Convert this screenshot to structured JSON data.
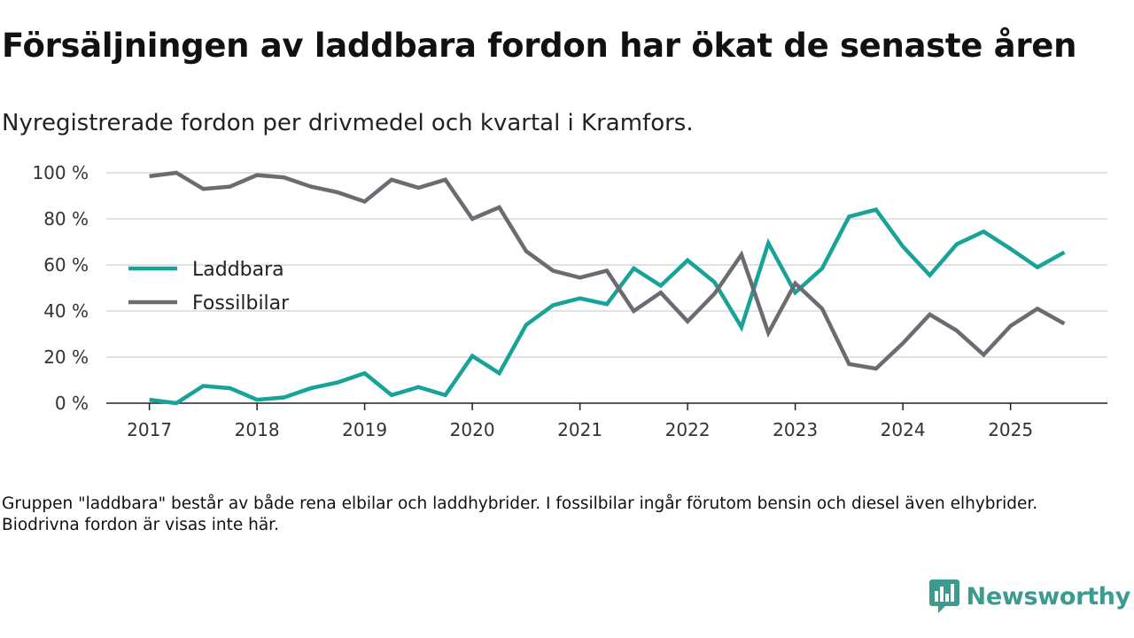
{
  "title": "Försäljningen av laddbara fordon har ökat de senaste åren",
  "subtitle": "Nyregistrerade fordon per drivmedel och kvartal i Kramfors.",
  "note": "Gruppen \"laddbara\" består av både rena elbilar och laddhybrider. I fossilbilar ingår förutom bensin och diesel även elhybrider. Biodrivna fordon är visas inte här.",
  "brand": {
    "name": "Newsworthy",
    "color": "#3d9a8f"
  },
  "chart_data": {
    "type": "line",
    "title": "Försäljningen av laddbara fordon har ökat de senaste åren",
    "xlabel": "",
    "ylabel": "",
    "ylim": [
      0,
      100
    ],
    "xlim": [
      2016.6,
      2025.9
    ],
    "y_ticks": [
      0,
      20,
      40,
      60,
      80,
      100
    ],
    "y_tick_labels": [
      "0 %",
      "20 %",
      "40 %",
      "60 %",
      "80 %",
      "100 %"
    ],
    "x_ticks": [
      2017,
      2018,
      2019,
      2020,
      2021,
      2022,
      2023,
      2024,
      2025
    ],
    "x_tick_labels": [
      "2017",
      "2018",
      "2019",
      "2020",
      "2021",
      "2022",
      "2023",
      "2024",
      "2025"
    ],
    "grid": true,
    "legend_position": "left",
    "x": [
      2017.0,
      2017.25,
      2017.5,
      2017.75,
      2018.0,
      2018.25,
      2018.5,
      2018.75,
      2019.0,
      2019.25,
      2019.5,
      2019.75,
      2020.0,
      2020.25,
      2020.5,
      2020.75,
      2021.0,
      2021.25,
      2021.5,
      2021.75,
      2022.0,
      2022.25,
      2022.5,
      2022.75,
      2023.0,
      2023.25,
      2023.5,
      2023.75,
      2024.0,
      2024.25,
      2024.5,
      2024.75,
      2025.0,
      2025.25,
      2025.5
    ],
    "series": [
      {
        "name": "Laddbara",
        "color": "#17a398",
        "values": [
          1.5,
          0,
          7.5,
          6.5,
          1.5,
          2.5,
          6.5,
          9,
          13,
          3.5,
          7,
          3.5,
          20.5,
          13,
          34,
          42.5,
          45.5,
          43,
          58.5,
          51,
          62,
          52.5,
          33,
          69.5,
          48,
          58.5,
          81,
          84,
          68,
          55.5,
          69,
          74.5,
          67,
          59,
          65.5
        ]
      },
      {
        "name": "Fossilbilar",
        "color": "#6d6a72",
        "values": [
          98.5,
          100,
          93,
          94,
          99,
          98,
          94,
          91.5,
          87.5,
          97,
          93.5,
          97,
          80,
          85,
          66,
          57.5,
          54.5,
          57.5,
          40,
          48,
          35.5,
          47.5,
          64.5,
          30.5,
          52,
          41,
          17,
          15,
          26,
          38.5,
          31.5,
          21,
          33.5,
          41,
          34.5
        ]
      }
    ]
  }
}
